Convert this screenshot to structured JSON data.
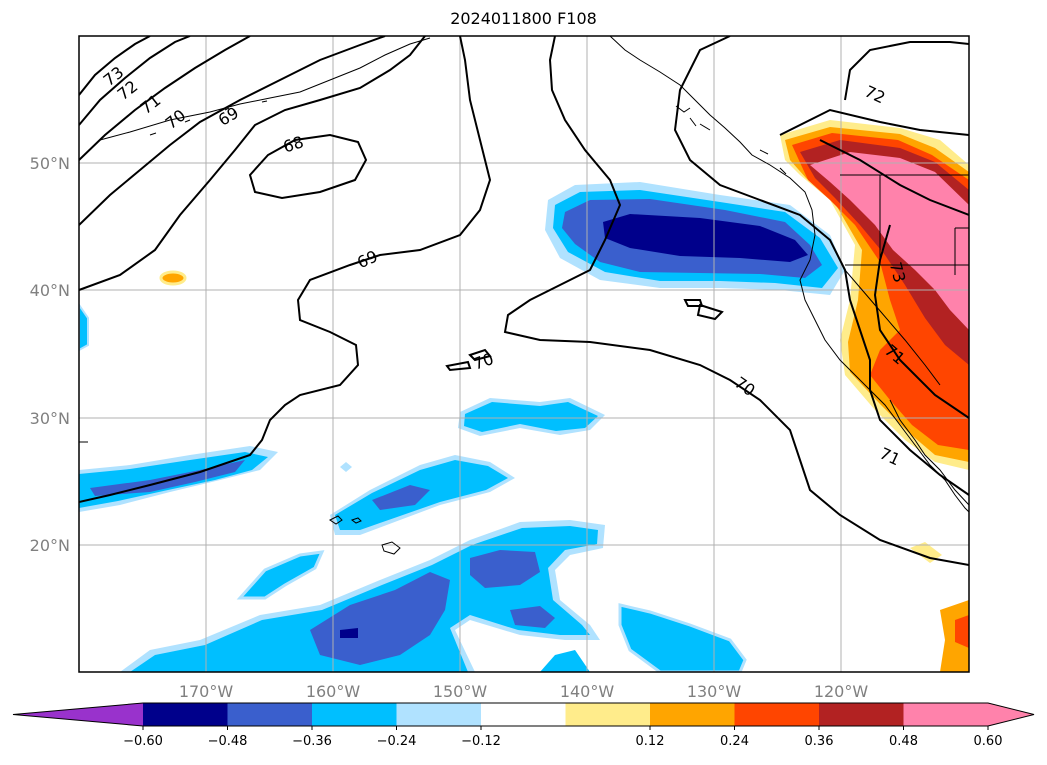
{
  "title": "2024011800 F108",
  "map": {
    "lat_labels": [
      "50°N",
      "40°N",
      "30°N",
      "20°N"
    ],
    "lon_labels": [
      "170°W",
      "160°W",
      "150°W",
      "140°W",
      "130°W",
      "120°W"
    ],
    "contour_labels": [
      "73",
      "72",
      "71",
      "70",
      "69",
      "68",
      "69",
      "70",
      "70",
      "71",
      "72",
      "73",
      "71"
    ]
  },
  "colorbar": {
    "ticks": [
      "−0.60",
      "−0.48",
      "−0.36",
      "−0.24",
      "−0.12",
      "0.12",
      "0.24",
      "0.36",
      "0.48",
      "0.60"
    ],
    "colors": [
      "#9932cc",
      "#00008b",
      "#3a5fcd",
      "#00bfff",
      "#b0e2ff",
      "#ffffff",
      "#ffec8b",
      "#ffa500",
      "#ff4500",
      "#b22222",
      "#ff82ab",
      "#ff82ab"
    ]
  }
}
